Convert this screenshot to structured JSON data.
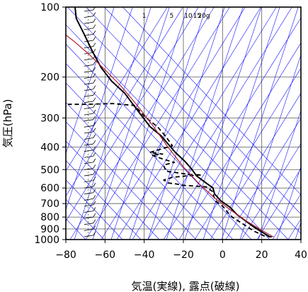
{
  "chart_data": {
    "type": "line",
    "title": "",
    "xlabel": "気温(実線), 露点(破線)",
    "ylabel": "気圧(hPa)",
    "xlim": [
      -80,
      40
    ],
    "ylim": [
      1000,
      100
    ],
    "y_scale": "log",
    "x_ticks": [
      -80,
      -60,
      -40,
      -20,
      0,
      20,
      40
    ],
    "x_tick_labels": [
      "−80",
      "−60",
      "−40",
      "−20",
      "0",
      "20",
      "40"
    ],
    "y_ticks": [
      100,
      200,
      300,
      400,
      500,
      600,
      700,
      800,
      900,
      1000
    ],
    "y_tick_labels": [
      "100",
      "200",
      "300",
      "400",
      "500",
      "600",
      "700",
      "800",
      "900",
      "1000"
    ],
    "grid": true,
    "mixing_ratio_labels": [
      "1",
      "5",
      "10",
      "15",
      "20g"
    ],
    "series": [
      {
        "style": "solid",
        "color": "#000000",
        "points": [
          [
            24.3,
            975
          ],
          [
            19.8,
            925
          ],
          [
            15.3,
            875
          ],
          [
            11.5,
            828
          ],
          [
            7.3,
            780
          ],
          [
            3.9,
            727
          ],
          [
            -1.0,
            680
          ],
          [
            -4.1,
            636
          ],
          [
            -4.9,
            600
          ],
          [
            -8.8,
            568
          ],
          [
            -13.3,
            532
          ],
          [
            -15.8,
            497
          ],
          [
            -19.2,
            461
          ],
          [
            -24.1,
            422
          ],
          [
            -27.7,
            389
          ],
          [
            -31.5,
            357
          ],
          [
            -37.0,
            327
          ],
          [
            -41.5,
            292
          ],
          [
            -45.6,
            263
          ],
          [
            -49.9,
            235
          ],
          [
            -56.7,
            208
          ],
          [
            -62.0,
            182
          ],
          [
            -66.3,
            156
          ],
          [
            -70.6,
            131
          ],
          [
            -74.7,
            112
          ],
          [
            -75.3,
            100
          ]
        ]
      },
      {
        "style": "dashed",
        "color": "#000000",
        "points": [
          [
            25.1,
            975
          ],
          [
            21.3,
            965
          ],
          [
            16.0,
            920
          ],
          [
            10.4,
            856
          ],
          [
            5.2,
            804
          ],
          [
            2.8,
            768
          ],
          [
            0.4,
            723
          ],
          [
            -3.7,
            680
          ],
          [
            -4.6,
            646
          ],
          [
            -5.0,
            622
          ],
          [
            -8.4,
            593
          ],
          [
            -13.8,
            589
          ],
          [
            -19.5,
            585
          ],
          [
            -24.0,
            576
          ],
          [
            -27.7,
            571
          ],
          [
            -30.0,
            555
          ],
          [
            -25.6,
            540
          ],
          [
            -18.0,
            532
          ],
          [
            -10.7,
            527
          ],
          [
            -17.1,
            525
          ],
          [
            -28.8,
            508
          ],
          [
            -30.2,
            478
          ],
          [
            -24.6,
            466
          ],
          [
            -30.3,
            451
          ],
          [
            -36.1,
            433
          ],
          [
            -30.6,
            429
          ],
          [
            -37.1,
            422
          ],
          [
            -30.9,
            407
          ],
          [
            -25.6,
            395
          ],
          [
            -28.9,
            361
          ],
          [
            -33.1,
            328
          ],
          [
            -39.8,
            296
          ],
          [
            -43.0,
            276
          ],
          [
            -45.0,
            265
          ],
          [
            -56.2,
            260
          ],
          [
            -70.3,
            262
          ],
          [
            -78.8,
            262
          ]
        ]
      },
      {
        "style": "solid",
        "color": "#b0223a",
        "points": [
          [
            26.0,
            975
          ],
          [
            19.0,
            902
          ],
          [
            12.0,
            830
          ],
          [
            4.0,
            745
          ],
          [
            -4.0,
            663
          ],
          [
            -12.0,
            575
          ],
          [
            -20.0,
            487
          ],
          [
            -28.0,
            399
          ],
          [
            -36.0,
            320
          ],
          [
            -44.0,
            262
          ],
          [
            -52.0,
            218
          ],
          [
            -60.0,
            186
          ],
          [
            -68.0,
            160
          ],
          [
            -76.0,
            140
          ],
          [
            -80.0,
            132
          ]
        ]
      }
    ],
    "colors": {
      "grid": "#595959",
      "isotherm": "#0000ff",
      "temperature": "#000000",
      "dewpoint": "#000000",
      "parcel": "#b0223a"
    }
  }
}
